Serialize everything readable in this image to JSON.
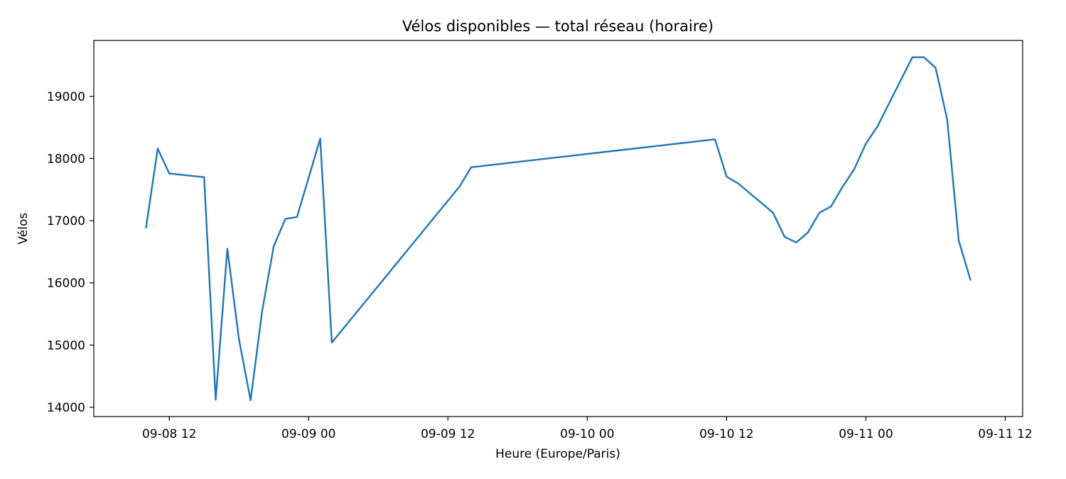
{
  "chart_data": {
    "type": "line",
    "title": "Vélos disponibles — total réseau (horaire)",
    "xlabel": "Heure (Europe/Paris)",
    "ylabel": "Vélos",
    "x_type": "datetime",
    "xlim": [
      "2025-09-08T05:30",
      "2025-09-11T13:30"
    ],
    "ylim": [
      13850,
      19900
    ],
    "x_ticks": [
      {
        "value": "2025-09-08T12:00",
        "label": "09-08 12"
      },
      {
        "value": "2025-09-09T00:00",
        "label": "09-09 00"
      },
      {
        "value": "2025-09-09T12:00",
        "label": "09-09 12"
      },
      {
        "value": "2025-09-10T00:00",
        "label": "09-10 00"
      },
      {
        "value": "2025-09-10T12:00",
        "label": "09-10 12"
      },
      {
        "value": "2025-09-11T00:00",
        "label": "09-11 00"
      },
      {
        "value": "2025-09-11T12:00",
        "label": "09-11 12"
      }
    ],
    "y_ticks": [
      14000,
      15000,
      16000,
      17000,
      18000,
      19000
    ],
    "grid": false,
    "colors": {
      "line": "#1f77b4"
    },
    "series": [
      {
        "x": [
          "2025-09-08T10:00",
          "2025-09-08T11:00",
          "2025-09-08T12:00",
          "2025-09-08T15:00",
          "2025-09-08T16:00",
          "2025-09-08T17:00",
          "2025-09-08T18:00",
          "2025-09-08T19:00",
          "2025-09-08T20:00",
          "2025-09-08T21:00",
          "2025-09-08T22:00",
          "2025-09-08T23:00",
          "2025-09-09T01:00",
          "2025-09-09T02:00",
          "2025-09-09T13:00",
          "2025-09-09T14:00",
          "2025-09-10T11:00",
          "2025-09-10T12:00",
          "2025-09-10T13:00",
          "2025-09-10T16:00",
          "2025-09-10T17:00",
          "2025-09-10T18:00",
          "2025-09-10T19:00",
          "2025-09-10T20:00",
          "2025-09-10T21:00",
          "2025-09-10T22:00",
          "2025-09-10T23:00",
          "2025-09-11T00:00",
          "2025-09-11T01:00",
          "2025-09-11T04:00",
          "2025-09-11T05:00",
          "2025-09-11T06:00",
          "2025-09-11T07:00",
          "2025-09-11T08:00",
          "2025-09-11T09:00"
        ],
        "values": [
          16890,
          18160,
          17760,
          17700,
          14120,
          16550,
          15100,
          14110,
          15550,
          16590,
          17030,
          17060,
          18320,
          15040,
          17550,
          17860,
          18310,
          17710,
          17600,
          17130,
          16740,
          16650,
          16810,
          17130,
          17230,
          17550,
          17830,
          18240,
          18520,
          19630,
          19630,
          19460,
          18630,
          16680,
          16050
        ]
      }
    ]
  }
}
